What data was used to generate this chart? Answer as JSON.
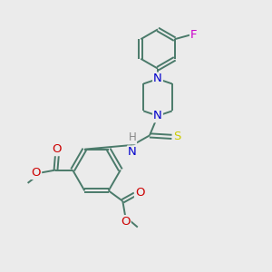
{
  "background_color": "#ebebeb",
  "bond_color": "#4a7a6a",
  "bond_width": 1.4,
  "atom_colors": {
    "N": "#0000cc",
    "O": "#cc0000",
    "S": "#cccc00",
    "F": "#cc00cc",
    "C": "#000000",
    "H": "#888888"
  },
  "font_size": 8.5,
  "fig_width": 3.0,
  "fig_height": 3.0,
  "dpi": 100
}
